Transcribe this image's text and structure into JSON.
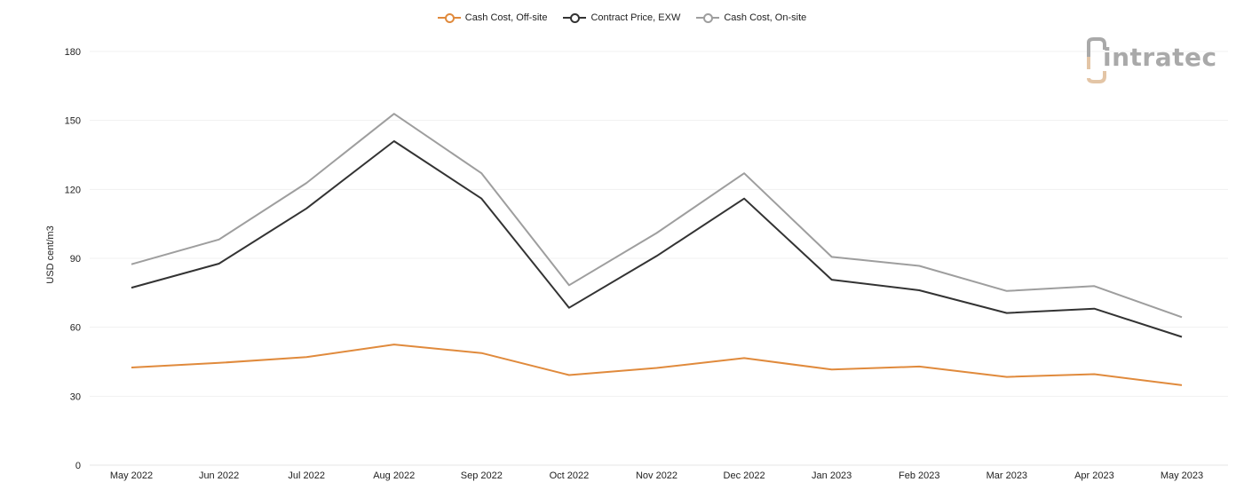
{
  "logo": {
    "text": "intratec",
    "accent_color": "#e3c5a6",
    "text_color": "#a9a9a9"
  },
  "chart_data": {
    "type": "line",
    "title": "",
    "xlabel": "",
    "ylabel": "USD cent/m3",
    "ylim": [
      0,
      180
    ],
    "yticks": [
      0,
      30,
      60,
      90,
      120,
      150,
      180
    ],
    "grid": true,
    "legend_position": "top-center",
    "categories": [
      "May 2022",
      "Jun 2022",
      "Jul 2022",
      "Aug 2022",
      "Sep 2022",
      "Oct 2022",
      "Nov 2022",
      "Dec 2022",
      "Jan 2023",
      "Feb 2023",
      "Mar 2023",
      "Apr 2023",
      "May 2023"
    ],
    "series": [
      {
        "name": "Cash Cost, Off-site",
        "color": "#e08a3c",
        "values": [
          42.5,
          44.5,
          47.0,
          52.5,
          48.8,
          39.2,
          42.3,
          46.6,
          41.6,
          42.9,
          38.4,
          39.6,
          34.8
        ]
      },
      {
        "name": "Contract Price, EXW",
        "color": "#333333",
        "values": [
          77.2,
          87.7,
          111.7,
          141.0,
          116.0,
          68.5,
          91.0,
          116.0,
          80.7,
          76.1,
          66.2,
          68.1,
          55.8
        ]
      },
      {
        "name": "Cash Cost, On-site",
        "color": "#9e9e9e",
        "values": [
          87.4,
          98.2,
          122.8,
          152.9,
          127.0,
          78.3,
          101.0,
          127.0,
          90.6,
          86.7,
          75.8,
          77.9,
          64.4
        ]
      }
    ]
  }
}
